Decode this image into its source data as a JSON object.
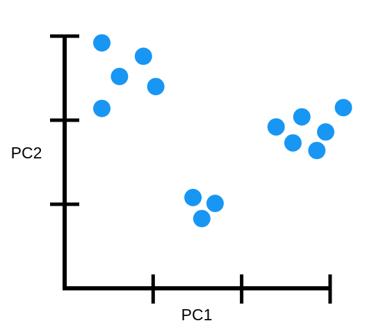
{
  "chart_data": {
    "type": "scatter",
    "title": "",
    "xlabel": "PC1",
    "ylabel": "PC2",
    "xlim": [
      0,
      3
    ],
    "ylim": [
      0,
      3
    ],
    "xticks": [
      1,
      2,
      3
    ],
    "yticks": [
      1,
      2,
      3
    ],
    "grid": false,
    "series": [
      {
        "color": "#1896f3",
        "points": [
          {
            "x": 0.42,
            "y": 2.92
          },
          {
            "x": 0.89,
            "y": 2.76
          },
          {
            "x": 0.62,
            "y": 2.52
          },
          {
            "x": 1.03,
            "y": 2.4
          },
          {
            "x": 0.42,
            "y": 2.14
          },
          {
            "x": 1.45,
            "y": 1.08
          },
          {
            "x": 1.7,
            "y": 1.01
          },
          {
            "x": 1.55,
            "y": 0.83
          },
          {
            "x": 2.39,
            "y": 1.92
          },
          {
            "x": 2.68,
            "y": 2.04
          },
          {
            "x": 3.15,
            "y": 2.15
          },
          {
            "x": 2.95,
            "y": 1.86
          },
          {
            "x": 2.58,
            "y": 1.73
          },
          {
            "x": 2.85,
            "y": 1.64
          }
        ]
      }
    ]
  }
}
